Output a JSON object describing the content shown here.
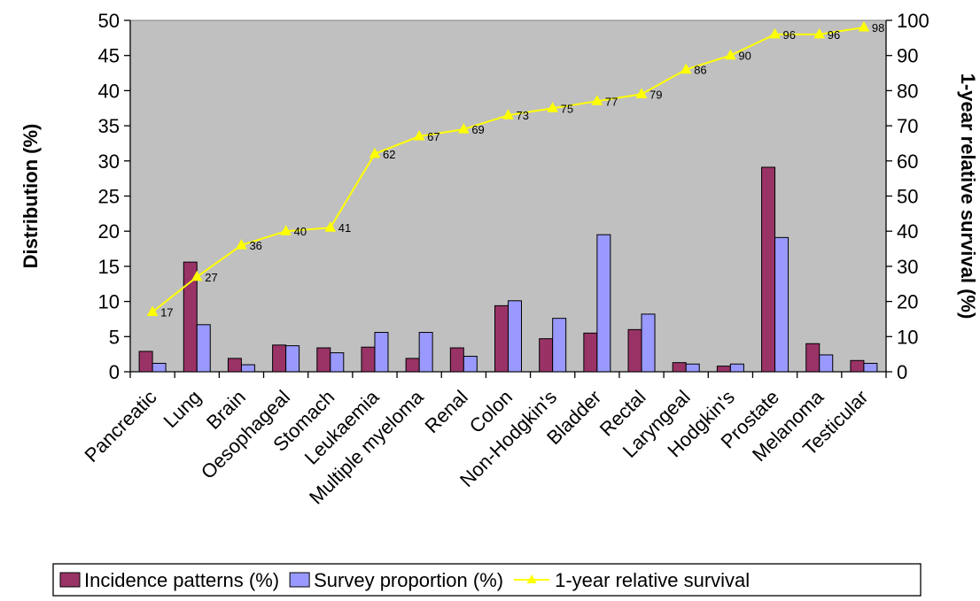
{
  "chart_data": {
    "type": "bar",
    "categories": [
      "Pancreatic",
      "Lung",
      "Brain",
      "Oesophageal",
      "Stomach",
      "Leukaemia",
      "Multiple myeloma",
      "Renal",
      "Colon",
      "Non-Hodgkin's",
      "Bladder",
      "Rectal",
      "Laryngeal",
      "Hodgkin's",
      "Prostate",
      "Melanoma",
      "Testicular"
    ],
    "series": [
      {
        "name": "Incidence patterns (%)",
        "type": "bar",
        "axis": "left",
        "color": "#993366",
        "values": [
          2.9,
          15.6,
          1.9,
          3.8,
          3.4,
          3.5,
          1.9,
          3.4,
          9.4,
          4.7,
          5.5,
          6.0,
          1.3,
          0.8,
          29.1,
          4.0,
          1.6
        ]
      },
      {
        "name": "Survey proportion (%)",
        "type": "bar",
        "axis": "left",
        "color": "#9999ff",
        "values": [
          1.2,
          6.7,
          1.0,
          3.7,
          2.7,
          5.6,
          5.6,
          2.2,
          10.1,
          7.6,
          19.5,
          8.2,
          1.1,
          1.1,
          19.1,
          2.4,
          1.2
        ]
      },
      {
        "name": "1-year relative survival",
        "type": "line",
        "axis": "right",
        "color": "#ffff00",
        "values": [
          17,
          27,
          36,
          40,
          41,
          62,
          67,
          69,
          73,
          75,
          77,
          79,
          86,
          90,
          96,
          96,
          98
        ]
      }
    ],
    "data_labels": [
      "17",
      "27",
      "36",
      "40",
      "41",
      "62",
      "67",
      "69",
      "73",
      "75",
      "77",
      "79",
      "86",
      "90",
      "96",
      "96",
      "98"
    ],
    "ylabel": "Distribution (%)",
    "y2label": "1-year relative survival (%)",
    "ylim": [
      0,
      50
    ],
    "y2lim": [
      0,
      100
    ],
    "yticks": [
      "0",
      "5",
      "10",
      "15",
      "20",
      "25",
      "30",
      "35",
      "40",
      "45",
      "50"
    ],
    "y2ticks": [
      "0",
      "10",
      "20",
      "30",
      "40",
      "50",
      "60",
      "70",
      "80",
      "90",
      "100"
    ],
    "plot_background": "#c0c0c0",
    "grid": false,
    "legend_position": "bottom"
  }
}
